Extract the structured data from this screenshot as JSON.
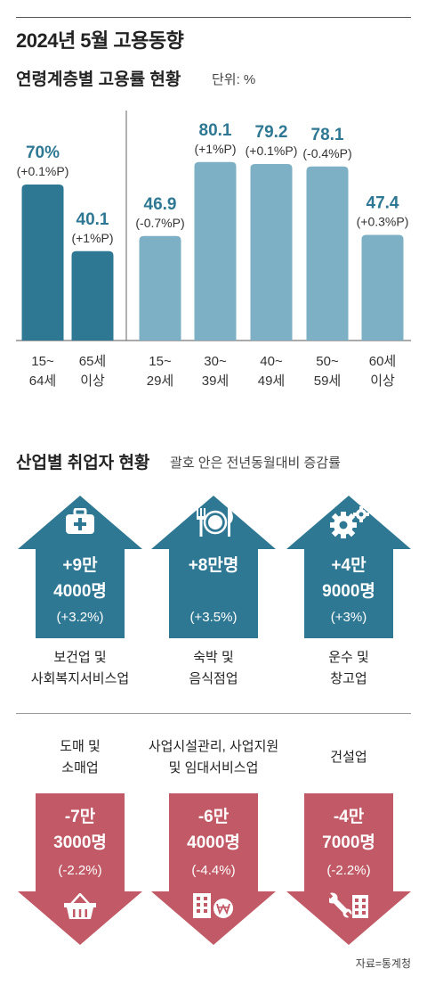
{
  "header": {
    "title": "2024년 5월 고용동향"
  },
  "age_section": {
    "title": "연령계층별 고용률 현황",
    "unit": "단위: %"
  },
  "industry_section": {
    "title": "산업별 취업자 현황",
    "note": "괄호 안은 전년동월대비 증감률"
  },
  "colors": {
    "dark_teal": "#2f7893",
    "light_teal": "#7eb0c5",
    "teal_arrow": "#2f7893",
    "red_arrow": "#c15a66",
    "value_text": "#2f7893"
  },
  "chart_data": {
    "type": "bar",
    "categories": [
      "15~\n64세",
      "65세\n이상",
      "15~\n29세",
      "30~\n39세",
      "40~\n49세",
      "50~\n59세",
      "60세\n이상"
    ],
    "values": [
      70,
      40.1,
      46.9,
      80.1,
      79.2,
      78.1,
      47.4
    ],
    "value_labels": [
      "70%",
      "40.1",
      "46.9",
      "80.1",
      "79.2",
      "78.1",
      "47.4"
    ],
    "change_labels": [
      "(+0.1%P)",
      "(+1%P)",
      "(-0.7%P)",
      "(+1%P)",
      "(+0.1%P)",
      "(-0.4%P)",
      "(+0.3%P)"
    ],
    "groups": [
      [
        0,
        1
      ],
      [
        2,
        3,
        4,
        5,
        6
      ]
    ],
    "ylim": [
      0,
      100
    ],
    "grid": false
  },
  "industries_up": [
    {
      "value_line1": "+9만",
      "value_line2": "4000명",
      "pct": "(+3.2%)",
      "label_line1": "보건업 및",
      "label_line2": "사회복지서비스업",
      "icon": "medical-kit-icon"
    },
    {
      "value_line1": "+8만명",
      "value_line2": "",
      "pct": "(+3.5%)",
      "label_line1": "숙박 및",
      "label_line2": "음식점업",
      "icon": "dining-icon"
    },
    {
      "value_line1": "+4만",
      "value_line2": "9000명",
      "pct": "(+3%)",
      "label_line1": "운수 및",
      "label_line2": "창고업",
      "icon": "gears-icon"
    }
  ],
  "industries_down": [
    {
      "label_line1": "도매 및",
      "label_line2": "소매업",
      "value_line1": "-7만",
      "value_line2": "3000명",
      "pct": "(-2.2%)",
      "icon": "shopping-basket-icon"
    },
    {
      "label_line1": "사업시설관리, 사업지원",
      "label_line2": "및 임대서비스업",
      "value_line1": "-6만",
      "value_line2": "4000명",
      "pct": "(-4.4%)",
      "icon": "building-won-icon"
    },
    {
      "label_line1": "건설업",
      "label_line2": "",
      "value_line1": "-4만",
      "value_line2": "7000명",
      "pct": "(-2.2%)",
      "icon": "wrench-building-icon"
    }
  ],
  "footer": {
    "source": "자료=통계청"
  }
}
